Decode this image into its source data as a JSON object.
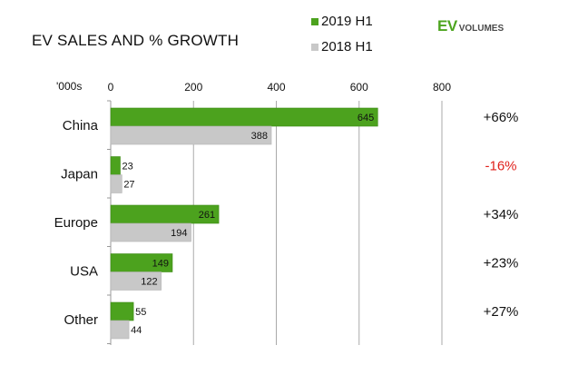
{
  "title": "EV SALES AND % GROWTH",
  "logo": {
    "ev": "EV",
    "volumes": "VOLUMES"
  },
  "colors": {
    "series_2019": "#4ca21e",
    "series_2018": "#c8c8c8",
    "growth_positive": "#111111",
    "growth_negative": "#e0201b",
    "axis": "#999999"
  },
  "chart_data": {
    "type": "bar",
    "orientation": "horizontal",
    "title": "EV SALES AND % GROWTH",
    "unit_label": "'000s",
    "categories": [
      "China",
      "Japan",
      "Europe",
      "USA",
      "Other"
    ],
    "series": [
      {
        "name": "2019 H1",
        "values": [
          645,
          23,
          261,
          149,
          55
        ]
      },
      {
        "name": "2018 H1",
        "values": [
          388,
          27,
          194,
          122,
          44
        ]
      }
    ],
    "growth_labels": [
      "+66%",
      "-16%",
      "+34%",
      "+23%",
      "+27%"
    ],
    "xlim": [
      0,
      800
    ],
    "xticks": [
      0,
      200,
      400,
      600,
      800
    ],
    "legend_position": "top"
  }
}
